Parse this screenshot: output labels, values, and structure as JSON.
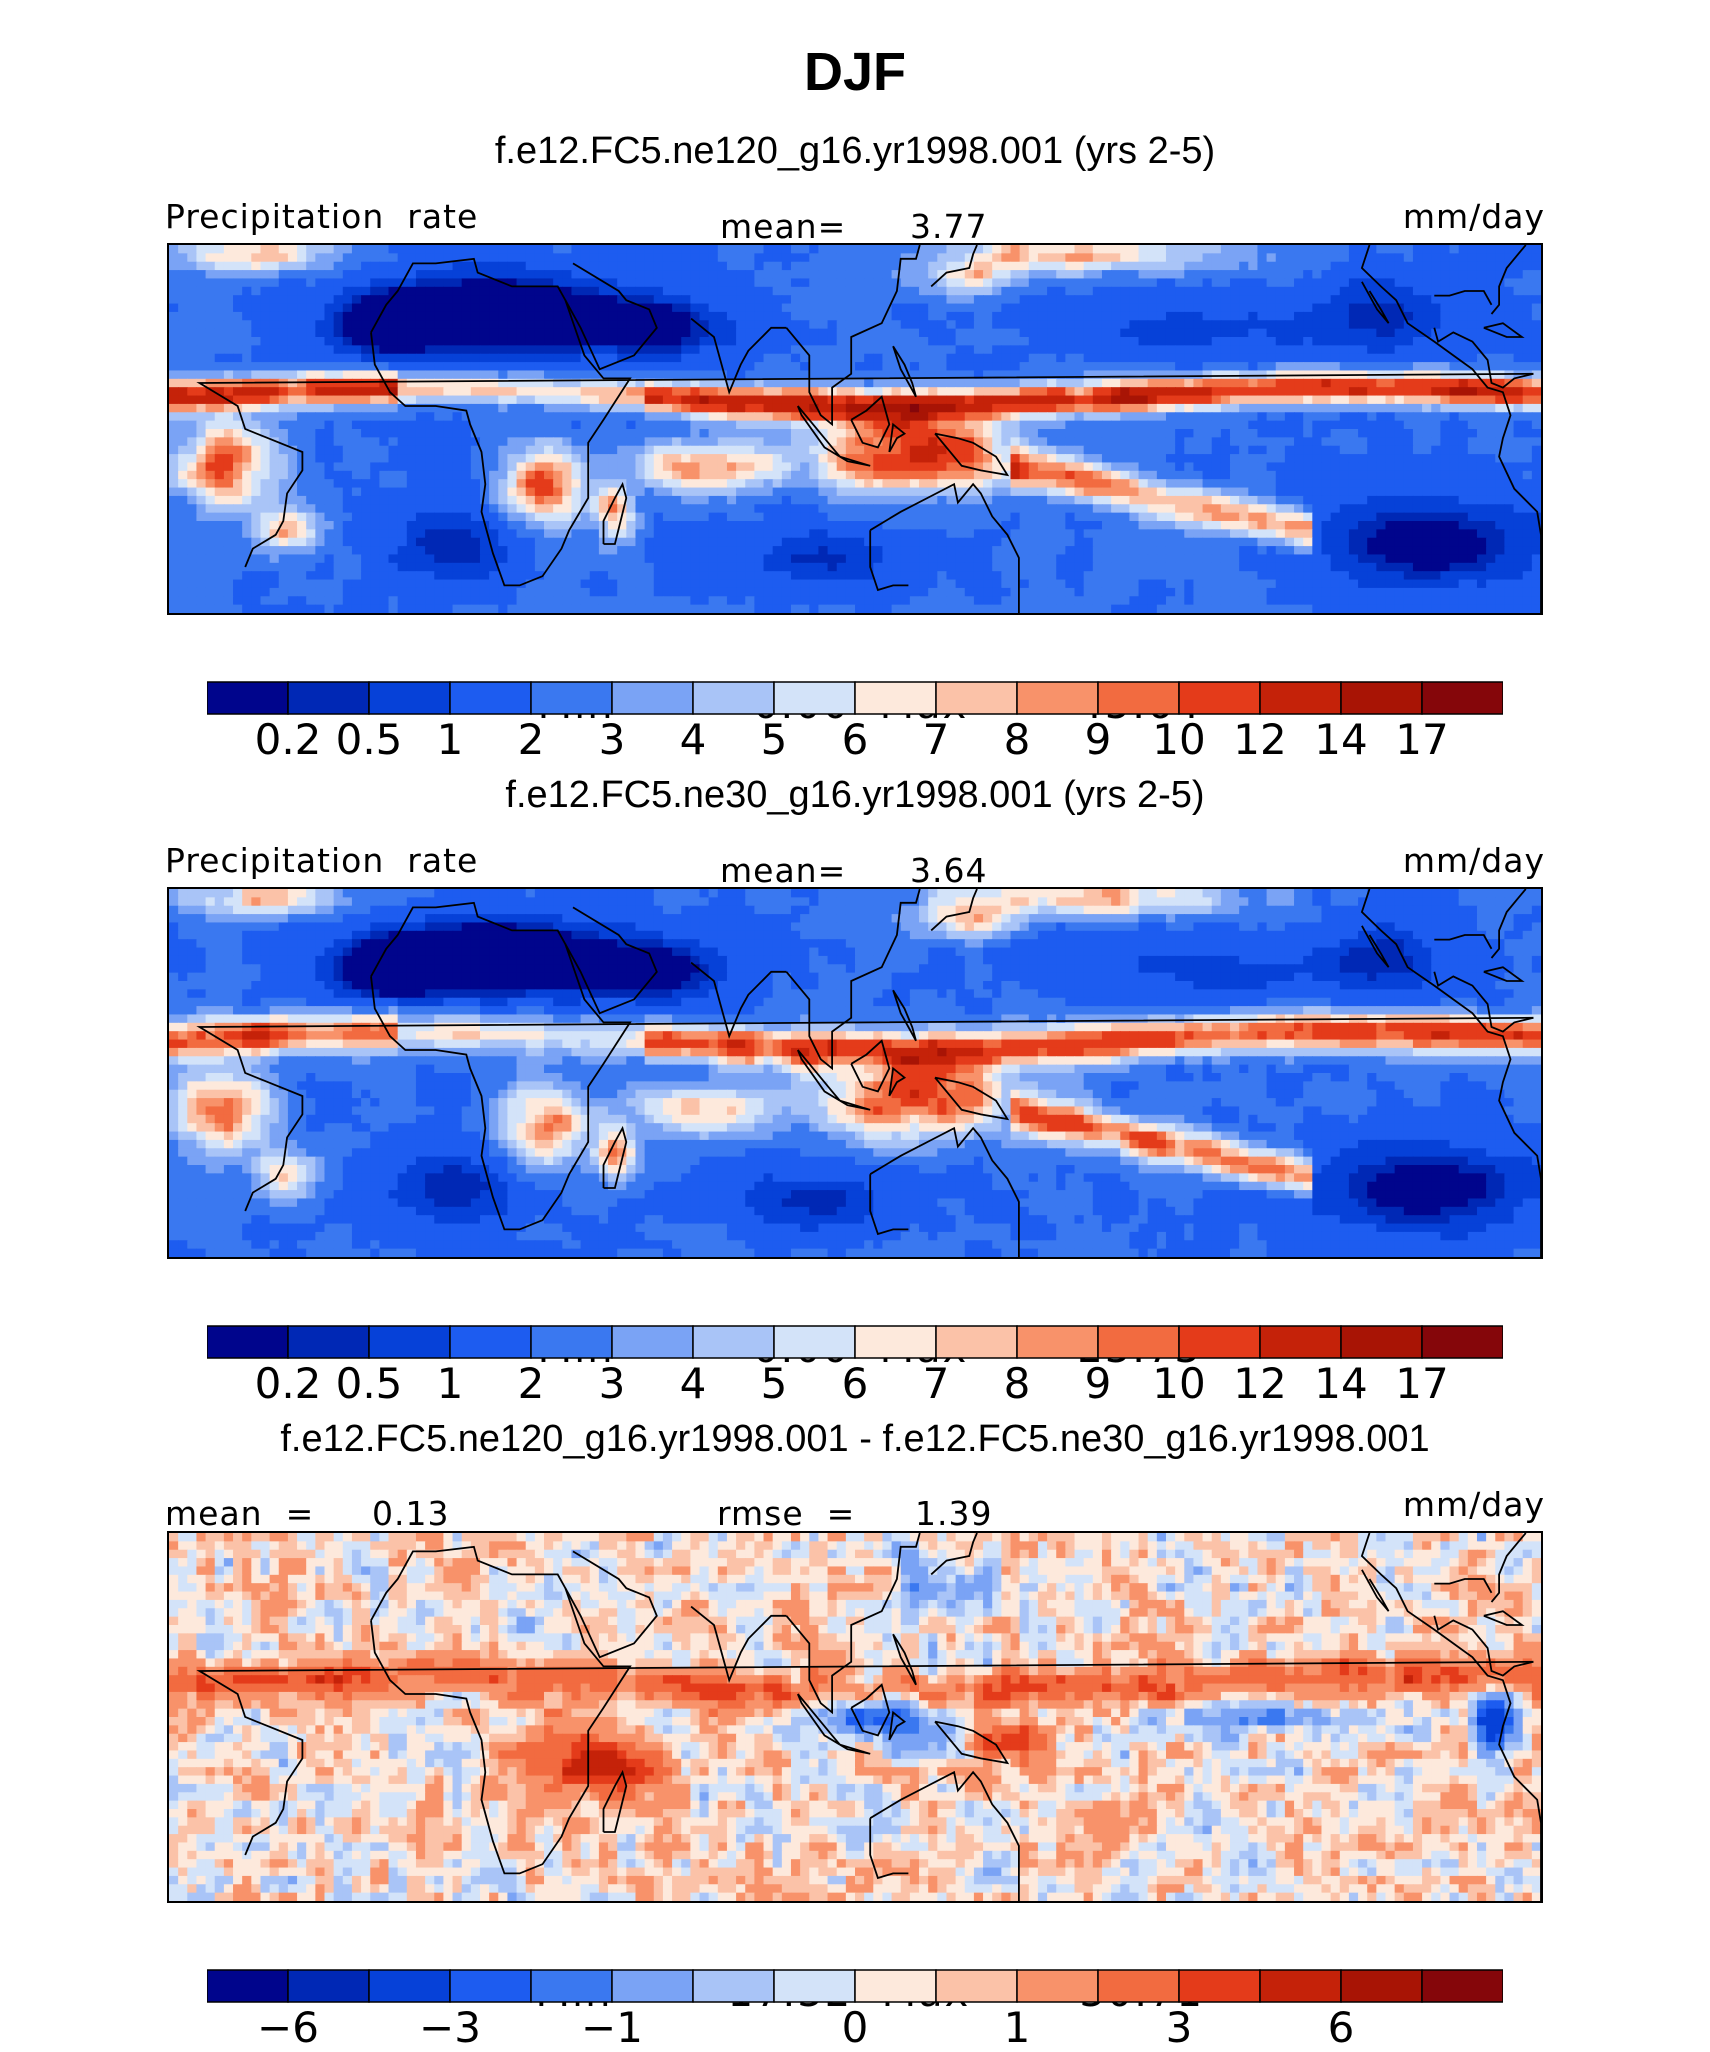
{
  "title": "DJF",
  "colors": {
    "precip_levels": [
      "#00058c",
      "#0028b5",
      "#0641d8",
      "#1d5cf0",
      "#3a78f0",
      "#7aa3f5",
      "#a9c4f7",
      "#d3e3f9",
      "#fde9dc",
      "#fbc2a8",
      "#f8926a",
      "#f26b40",
      "#e43b1a",
      "#c52209",
      "#a81405",
      "#85060a"
    ],
    "diff_levels": [
      "#00058c",
      "#0028b5",
      "#0641d8",
      "#1d5cf0",
      "#3a78f0",
      "#7aa3f5",
      "#a9c4f7",
      "#d3e3f9",
      "#fde9dc",
      "#fbc2a8",
      "#f8926a",
      "#f26b40",
      "#e43b1a",
      "#c52209",
      "#a81405",
      "#85060a"
    ],
    "coastline": "#000000"
  },
  "chart_data": [
    {
      "type": "heatmap",
      "title": "f.e12.FC5.ne120_g16.yr1998.001 (yrs 2-5)",
      "left_label": "Precipitation  rate",
      "center_label": "mean=",
      "center_value": "3.77",
      "units": "mm/day",
      "min_label": "Min  =",
      "min_value": "0.00",
      "max_label": "Max  =",
      "max_value": "45.64",
      "colorbar_ticks": [
        "0.2",
        "0.5",
        "1",
        "2",
        "3",
        "4",
        "5",
        "6",
        "7",
        "8",
        "9",
        "10",
        "12",
        "14",
        "17"
      ],
      "x_range": [
        0,
        360
      ],
      "y_range": [
        -40,
        40
      ],
      "features": [
        {
          "kind": "itcz",
          "lon": [
            -50,
            290
          ],
          "lat": 5,
          "value": 12
        },
        {
          "kind": "spcz",
          "lon": [
            150,
            220
          ],
          "lat": -12,
          "value": 9
        },
        {
          "kind": "warm-pool",
          "lon": [
            100,
            160
          ],
          "lat": -5,
          "value": 14
        },
        {
          "kind": "south-america",
          "lon": [
            290,
            320
          ],
          "lat": -10,
          "value": 9
        },
        {
          "kind": "africa",
          "lon": [
            15,
            40
          ],
          "lat": -12,
          "value": 8
        },
        {
          "kind": "sahara-dry",
          "lon": [
            -15,
            40
          ],
          "lat": 25,
          "value": 0.2
        }
      ]
    },
    {
      "type": "heatmap",
      "title": "f.e12.FC5.ne30_g16.yr1998.001 (yrs 2-5)",
      "left_label": "Precipitation  rate",
      "center_label": "mean=",
      "center_value": "3.64",
      "units": "mm/day",
      "min_label": "Min  =",
      "min_value": "0.00",
      "max_label": "Max  =",
      "max_value": "23.73",
      "colorbar_ticks": [
        "0.2",
        "0.5",
        "1",
        "2",
        "3",
        "4",
        "5",
        "6",
        "7",
        "8",
        "9",
        "10",
        "12",
        "14",
        "17"
      ],
      "x_range": [
        0,
        360
      ],
      "y_range": [
        -40,
        40
      ],
      "features": [
        {
          "kind": "itcz",
          "lon": [
            -50,
            290
          ],
          "lat": 6,
          "value": 10
        },
        {
          "kind": "spcz",
          "lon": [
            150,
            220
          ],
          "lat": -10,
          "value": 9
        },
        {
          "kind": "warm-pool",
          "lon": [
            100,
            160
          ],
          "lat": -5,
          "value": 12
        },
        {
          "kind": "south-america",
          "lon": [
            290,
            320
          ],
          "lat": -10,
          "value": 8
        },
        {
          "kind": "africa",
          "lon": [
            15,
            40
          ],
          "lat": -12,
          "value": 7
        },
        {
          "kind": "sahara-dry",
          "lon": [
            -15,
            40
          ],
          "lat": 25,
          "value": 0.2
        }
      ]
    },
    {
      "type": "heatmap",
      "title": "f.e12.FC5.ne120_g16.yr1998.001 - f.e12.FC5.ne30_g16.yr1998.001",
      "left_label": "mean  =",
      "left_value": "0.13",
      "center_label": "rmse  =",
      "center_value": "1.39",
      "units": "mm/day",
      "min_label": "Min  =",
      "min_value": "−17.32",
      "max_label": "Max  =",
      "max_value": "30.71",
      "colorbar_ticks": [
        "−6",
        "−3",
        "−1",
        "0",
        "1",
        "3",
        "6"
      ],
      "x_range": [
        0,
        360
      ],
      "y_range": [
        -40,
        40
      ],
      "features": [
        {
          "kind": "itcz-diff",
          "lon": [
            -50,
            290
          ],
          "lat": 8,
          "value": 3
        },
        {
          "kind": "indian-ocean",
          "lon": [
            40,
            80
          ],
          "lat": -10,
          "value": 4
        },
        {
          "kind": "maritime-neg",
          "lon": [
            110,
            150
          ],
          "lat": -3,
          "value": -3
        },
        {
          "kind": "east-pacific-neg",
          "lon": [
            270,
            285
          ],
          "lat": 0,
          "value": -6
        }
      ]
    }
  ]
}
